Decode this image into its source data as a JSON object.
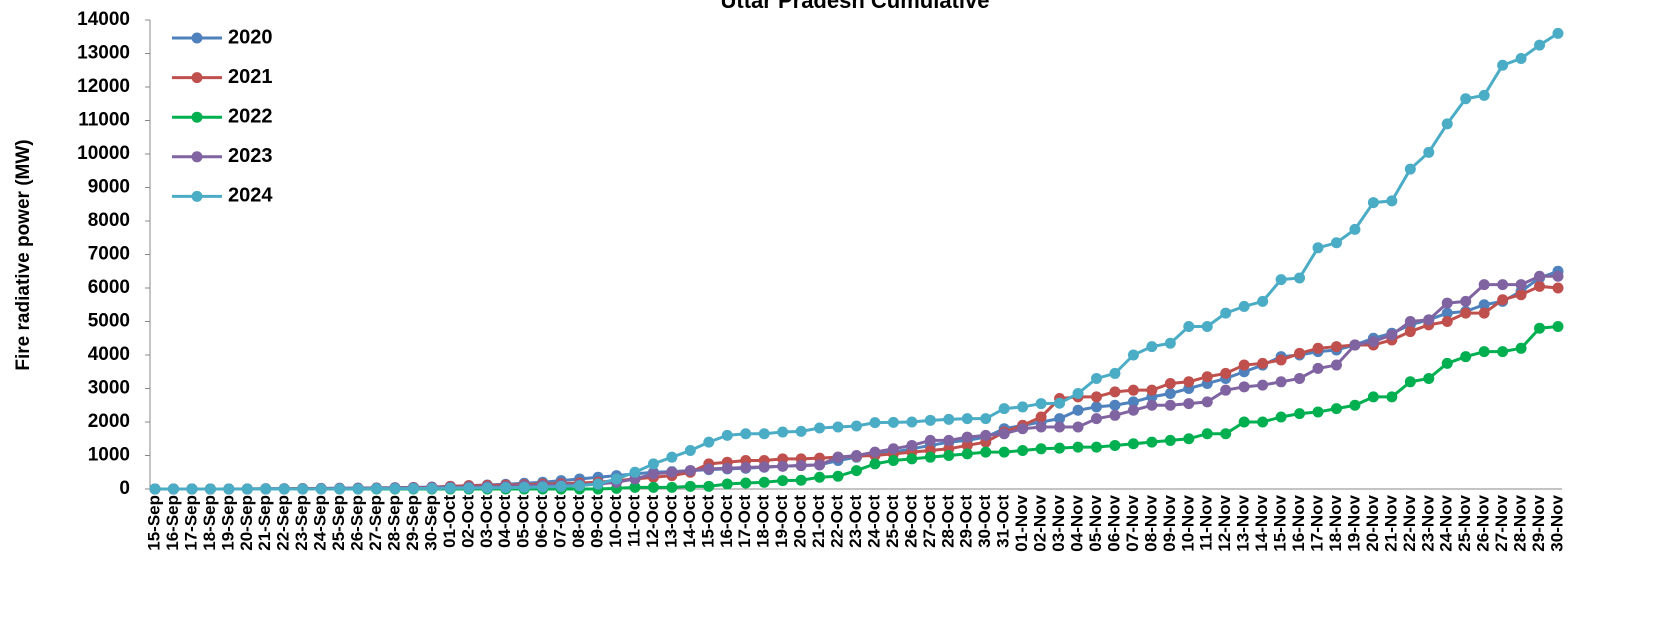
{
  "chart_data": {
    "type": "line",
    "title": "Uttar Pradesh Cumulative",
    "y_label": "Fire radiative power (MW)",
    "categories": [
      "15-Sep",
      "16-Sep",
      "17-Sep",
      "18-Sep",
      "19-Sep",
      "20-Sep",
      "21-Sep",
      "22-Sep",
      "23-Sep",
      "24-Sep",
      "25-Sep",
      "26-Sep",
      "27-Sep",
      "28-Sep",
      "29-Sep",
      "30-Sep",
      "01-Oct",
      "02-Oct",
      "03-Oct",
      "04-Oct",
      "05-Oct",
      "06-Oct",
      "07-Oct",
      "08-Oct",
      "09-Oct",
      "10-Oct",
      "11-Oct",
      "12-Oct",
      "13-Oct",
      "14-Oct",
      "15-Oct",
      "16-Oct",
      "17-Oct",
      "18-Oct",
      "19-Oct",
      "20-Oct",
      "21-Oct",
      "22-Oct",
      "23-Oct",
      "24-Oct",
      "25-Oct",
      "26-Oct",
      "27-Oct",
      "28-Oct",
      "29-Oct",
      "30-Oct",
      "31-Oct",
      "01-Nov",
      "02-Nov",
      "03-Nov",
      "04-Nov",
      "05-Nov",
      "06-Nov",
      "07-Nov",
      "08-Nov",
      "09-Nov",
      "10-Nov",
      "11-Nov",
      "12-Nov",
      "13-Nov",
      "14-Nov",
      "15-Nov",
      "16-Nov",
      "17-Nov",
      "18-Nov",
      "19-Nov",
      "20-Nov",
      "21-Nov",
      "22-Nov",
      "23-Nov",
      "24-Nov",
      "25-Nov",
      "26-Nov",
      "27-Nov",
      "28-Nov",
      "29-Nov",
      "30-Nov"
    ],
    "series": [
      {
        "name": "2020",
        "color": "#4f81bd",
        "values": [
          0,
          0,
          0,
          0,
          0,
          5,
          10,
          10,
          15,
          20,
          25,
          30,
          35,
          40,
          50,
          60,
          80,
          100,
          120,
          140,
          170,
          200,
          250,
          300,
          350,
          400,
          450,
          500,
          520,
          550,
          580,
          600,
          620,
          650,
          680,
          700,
          720,
          850,
          950,
          1050,
          1100,
          1200,
          1300,
          1400,
          1450,
          1550,
          1800,
          1900,
          2000,
          2100,
          2350,
          2450,
          2500,
          2600,
          2750,
          2850,
          3000,
          3150,
          3300,
          3500,
          3700,
          3950,
          4000,
          4100,
          4150,
          4300,
          4500,
          4650,
          4900,
          5050,
          5250,
          5300,
          5500,
          5600,
          5900,
          6300,
          6500
        ]
      },
      {
        "name": "2021",
        "color": "#c0504d",
        "values": [
          0,
          0,
          0,
          0,
          0,
          0,
          5,
          5,
          10,
          10,
          15,
          20,
          25,
          30,
          40,
          50,
          80,
          100,
          110,
          120,
          130,
          150,
          160,
          180,
          200,
          250,
          300,
          350,
          400,
          500,
          750,
          800,
          850,
          850,
          900,
          900,
          920,
          950,
          980,
          1000,
          1050,
          1100,
          1150,
          1200,
          1300,
          1400,
          1700,
          1900,
          2150,
          2700,
          2750,
          2750,
          2900,
          2950,
          2950,
          3150,
          3200,
          3350,
          3450,
          3700,
          3750,
          3850,
          4050,
          4200,
          4250,
          4300,
          4300,
          4450,
          4700,
          4900,
          5000,
          5250,
          5250,
          5650,
          5800,
          6050,
          6000
        ]
      },
      {
        "name": "2022",
        "color": "#00b050",
        "values": [
          0,
          0,
          0,
          0,
          0,
          0,
          0,
          0,
          0,
          0,
          0,
          0,
          0,
          0,
          0,
          0,
          0,
          0,
          0,
          0,
          0,
          0,
          0,
          0,
          0,
          20,
          50,
          50,
          50,
          80,
          80,
          150,
          180,
          200,
          250,
          260,
          350,
          380,
          550,
          750,
          850,
          900,
          950,
          1000,
          1050,
          1100,
          1100,
          1150,
          1200,
          1220,
          1250,
          1250,
          1300,
          1350,
          1400,
          1450,
          1500,
          1650,
          1650,
          2000,
          2000,
          2150,
          2250,
          2300,
          2400,
          2500,
          2750,
          2750,
          3200,
          3300,
          3750,
          3950,
          4100,
          4100,
          4200,
          4800,
          4850
        ]
      },
      {
        "name": "2023",
        "color": "#8064a2",
        "values": [
          0,
          0,
          0,
          0,
          0,
          0,
          0,
          5,
          5,
          10,
          10,
          15,
          20,
          25,
          30,
          40,
          50,
          60,
          70,
          80,
          100,
          110,
          120,
          130,
          150,
          200,
          300,
          450,
          500,
          550,
          600,
          620,
          640,
          660,
          680,
          700,
          720,
          950,
          1000,
          1100,
          1200,
          1300,
          1450,
          1450,
          1550,
          1600,
          1650,
          1800,
          1850,
          1850,
          1850,
          2100,
          2200,
          2350,
          2500,
          2500,
          2550,
          2600,
          2950,
          3050,
          3100,
          3200,
          3300,
          3600,
          3700,
          4300,
          4400,
          4600,
          5000,
          5050,
          5550,
          5600,
          6100,
          6100,
          6100,
          6350,
          6350
        ]
      },
      {
        "name": "2024",
        "color": "#4bacc6",
        "values": [
          0,
          0,
          0,
          0,
          0,
          0,
          0,
          0,
          0,
          0,
          5,
          5,
          10,
          10,
          15,
          20,
          25,
          30,
          35,
          40,
          50,
          60,
          80,
          100,
          150,
          300,
          500,
          750,
          950,
          1150,
          1400,
          1600,
          1650,
          1650,
          1700,
          1720,
          1820,
          1850,
          1880,
          1980,
          1990,
          2000,
          2050,
          2080,
          2100,
          2100,
          2400,
          2450,
          2550,
          2560,
          2850,
          3300,
          3450,
          4000,
          4250,
          4350,
          4850,
          4850,
          5250,
          5450,
          5600,
          6250,
          6300,
          7200,
          7350,
          7750,
          8550,
          8600,
          9550,
          10050,
          10900,
          11650,
          11750,
          12650,
          12850,
          13250,
          13600
        ]
      }
    ],
    "ylim": [
      0,
      14000
    ],
    "yticks": [
      0,
      1000,
      2000,
      3000,
      4000,
      5000,
      6000,
      7000,
      8000,
      9000,
      10000,
      11000,
      12000,
      13000,
      14000
    ],
    "legend": "upper left"
  }
}
